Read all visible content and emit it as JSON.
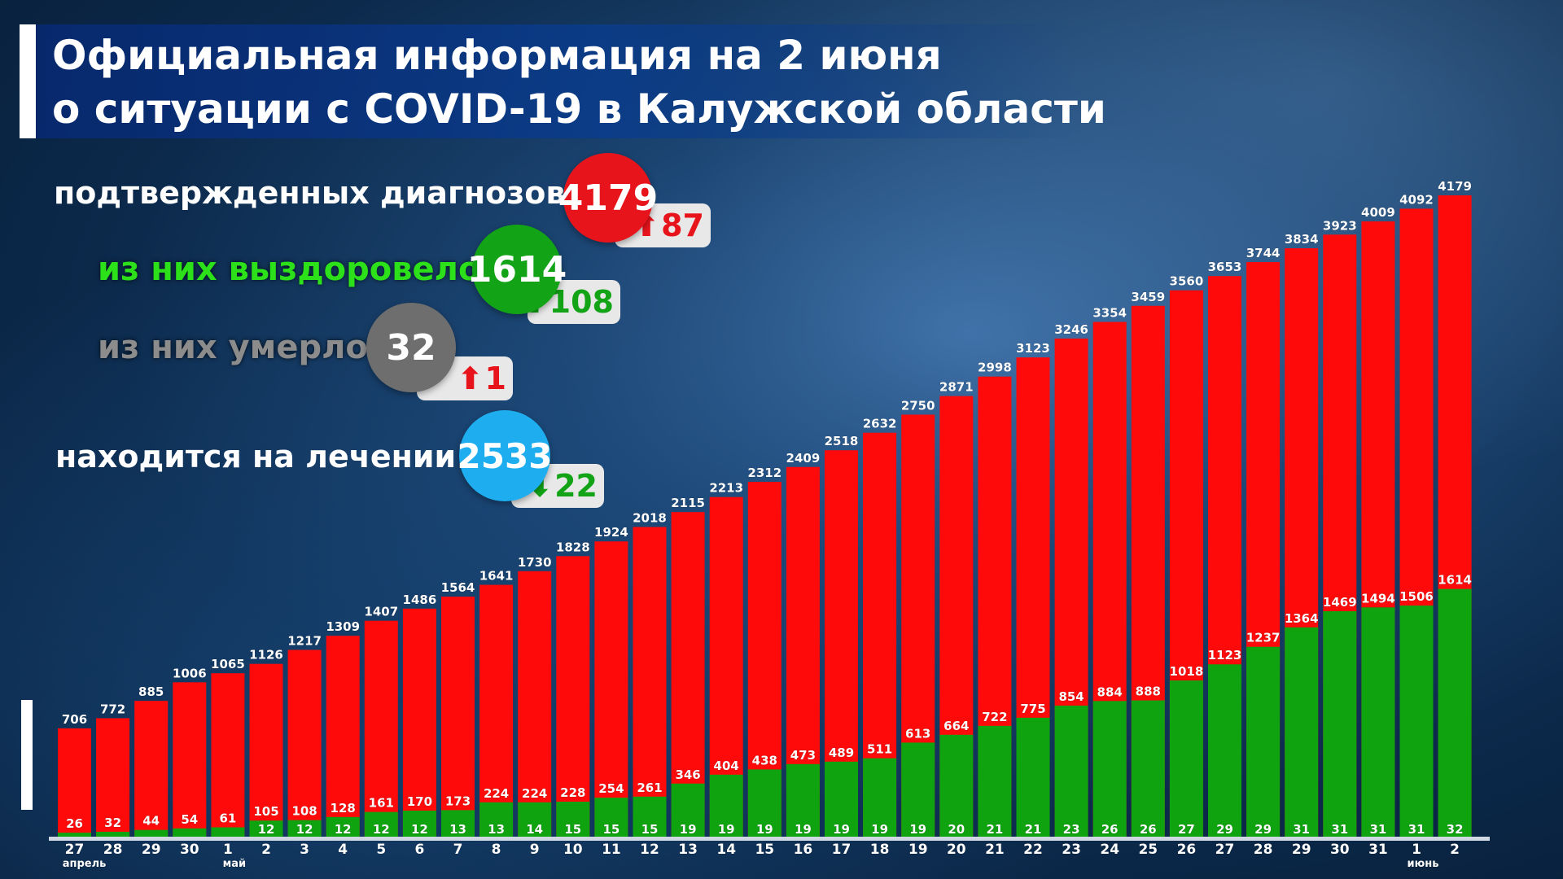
{
  "title": {
    "line1": "Официальная информация на 2 июня",
    "line2": "о ситуации с COVID-19 в Калужской области"
  },
  "stats": {
    "confirmed": {
      "label": "подтвержденных диагнозов",
      "value": "4179",
      "delta": "87",
      "direction": "up",
      "color": "#e8141c"
    },
    "recovered": {
      "label": "из них выздоровело",
      "value": "1614",
      "delta": "108",
      "direction": "up",
      "color": "#12a316"
    },
    "deaths": {
      "label": "из них умерло",
      "value": "32",
      "delta": "1",
      "direction": "up",
      "color": "#6e6e6e"
    },
    "active": {
      "label": "находится на лечении",
      "value": "2533",
      "delta": "22",
      "direction": "down",
      "color": "#1eaeef"
    }
  },
  "icons": {
    "up": "up-arrow-icon",
    "down": "down-arrow-icon"
  },
  "chart_data": {
    "type": "bar",
    "categories": [
      "27",
      "28",
      "29",
      "30",
      "1",
      "2",
      "3",
      "4",
      "5",
      "6",
      "7",
      "8",
      "9",
      "10",
      "11",
      "12",
      "13",
      "14",
      "15",
      "16",
      "17",
      "18",
      "19",
      "20",
      "21",
      "22",
      "23",
      "24",
      "25",
      "26",
      "27",
      "28",
      "29",
      "30",
      "31",
      "1",
      "2"
    ],
    "month_labels": [
      {
        "index": 0,
        "text": "апрель"
      },
      {
        "index": 4,
        "text": "май"
      },
      {
        "index": 35,
        "text": "июнь"
      }
    ],
    "series": [
      {
        "values": [
          706,
          772,
          885,
          1006,
          1065,
          1126,
          1217,
          1309,
          1407,
          1486,
          1564,
          1641,
          1730,
          1828,
          1924,
          2018,
          2115,
          2213,
          2312,
          2409,
          2518,
          2632,
          2750,
          2871,
          2998,
          3123,
          3246,
          3354,
          3459,
          3560,
          3653,
          3744,
          3834,
          3923,
          4009,
          4092,
          4179
        ],
        "color": "#ff0a0a"
      },
      {
        "values": [
          26,
          32,
          44,
          54,
          61,
          105,
          108,
          128,
          161,
          170,
          173,
          224,
          224,
          228,
          254,
          261,
          346,
          404,
          438,
          473,
          489,
          511,
          613,
          664,
          722,
          775,
          854,
          884,
          888,
          1018,
          1123,
          1237,
          1364,
          1469,
          1494,
          1506,
          1614
        ],
        "color": "#0fa310"
      },
      {
        "values": [
          null,
          null,
          null,
          null,
          null,
          12,
          12,
          12,
          12,
          12,
          13,
          13,
          14,
          15,
          15,
          15,
          19,
          19,
          19,
          19,
          19,
          19,
          19,
          20,
          21,
          21,
          23,
          26,
          26,
          27,
          29,
          29,
          31,
          31,
          31,
          31,
          32
        ]
      }
    ],
    "ylim": [
      0,
      4179
    ]
  }
}
